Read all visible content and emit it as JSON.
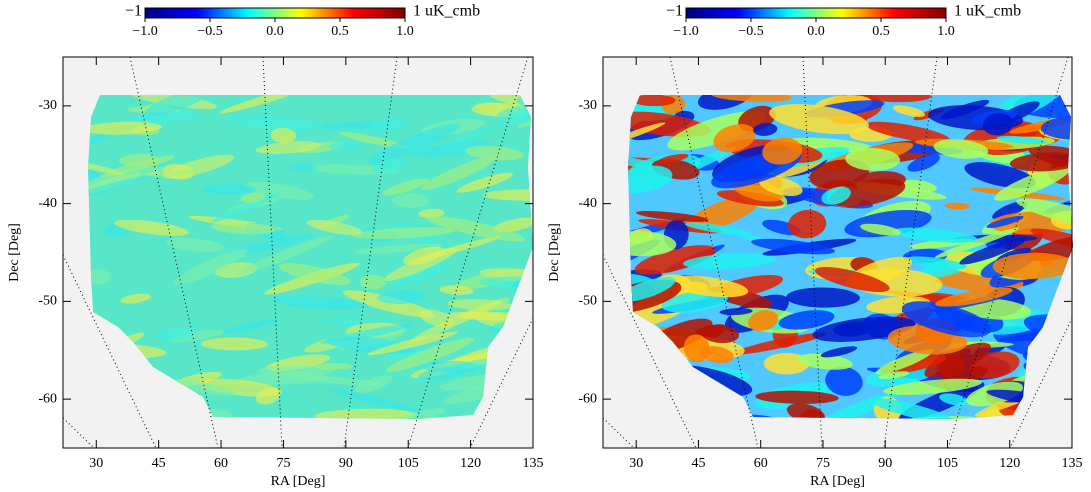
{
  "chart_data": [
    {
      "type": "heatmap",
      "xlabel": "RA [Deg]",
      "ylabel": "Dec [Deg]",
      "xlim": [
        22,
        135
      ],
      "xticks": [
        30,
        45,
        60,
        75,
        90,
        105,
        120,
        135
      ],
      "ylim": [
        -65,
        -25
      ],
      "yticks": [
        -30,
        -40,
        -50,
        -60
      ],
      "colorbar": {
        "min_label": "−1",
        "max_label": "1 uK_cmb",
        "lim": [
          -1,
          1
        ],
        "ticks": [
          {
            "value": -1,
            "label": "−1.0"
          },
          {
            "value": -0.5,
            "label": "−0.5"
          },
          {
            "value": 0,
            "label": "0.0"
          },
          {
            "value": 0.5,
            "label": "0.5"
          },
          {
            "value": 1,
            "label": "1.0"
          }
        ],
        "colormap": [
          "#00007f",
          "#0000ff",
          "#00ffff",
          "#ffff00",
          "#ff0000",
          "#7f0000"
        ]
      }
    },
    {
      "type": "heatmap",
      "xlabel": "RA [Deg]",
      "ylabel": "Dec [Deg]",
      "xlim": [
        22,
        135
      ],
      "xticks": [
        30,
        45,
        60,
        75,
        90,
        105,
        120,
        135
      ],
      "ylim": [
        -65,
        -25
      ],
      "yticks": [
        -30,
        -40,
        -50,
        -60
      ],
      "colorbar": {
        "min_label": "−1",
        "max_label": "1 uK_cmb",
        "lim": [
          -1,
          1
        ],
        "ticks": [
          {
            "value": -1,
            "label": "−1.0"
          },
          {
            "value": -0.5,
            "label": "−0.5"
          },
          {
            "value": 0,
            "label": "0.0"
          },
          {
            "value": 0.5,
            "label": "0.5"
          },
          {
            "value": 1,
            "label": "1.0"
          }
        ],
        "colormap": [
          "#00007f",
          "#0000ff",
          "#00ffff",
          "#ffff00",
          "#ff0000",
          "#7f0000"
        ]
      }
    }
  ]
}
